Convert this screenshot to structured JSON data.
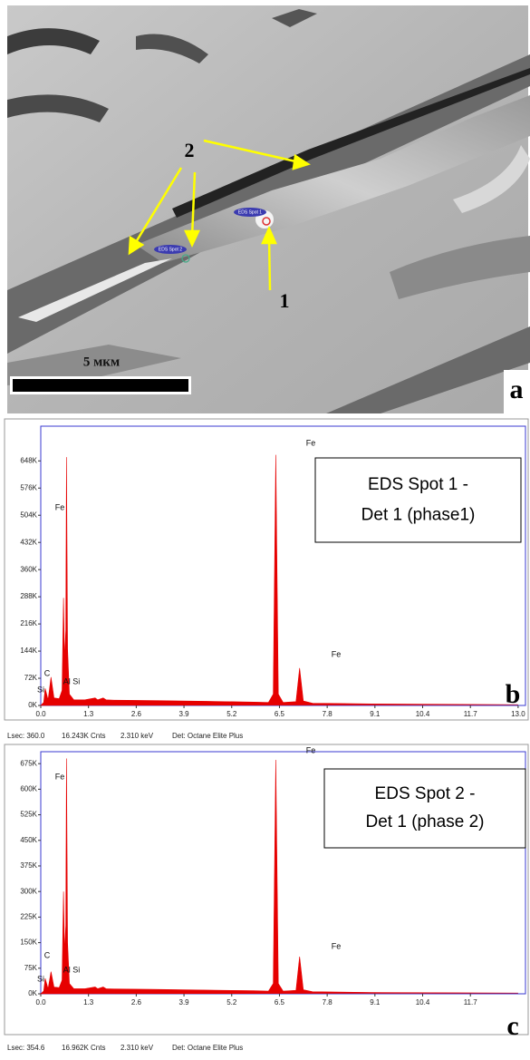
{
  "panel_a": {
    "arrow_label_2": "2",
    "arrow_label_1": "1",
    "spot_1": "EDS Spot 1",
    "spot_2": "EDS Spot 2",
    "scale_label": "5 мкм",
    "panel_letter": "a"
  },
  "chart_data": [
    {
      "type": "area",
      "color": "#e60000",
      "panel_letter": "b",
      "annotation": [
        "EDS Spot 1 -",
        "Det 1 (phase1)"
      ],
      "peak_labels": [
        "C",
        "Si",
        "Fe",
        "Al Si",
        "Fe",
        "Fe"
      ],
      "footer": [
        "Lsec: 360.0",
        "16.243K Cnts",
        "2.310 keV",
        "Det: Octane Elite Plus"
      ],
      "x": [
        0,
        0.08,
        0.12,
        0.2,
        0.28,
        0.36,
        0.5,
        0.58,
        0.62,
        0.65,
        0.68,
        0.7,
        0.73,
        0.78,
        0.9,
        1.2,
        1.48,
        1.55,
        1.7,
        1.78,
        2.0,
        3.0,
        4.5,
        5.8,
        6.2,
        6.33,
        6.4,
        6.47,
        6.6,
        6.95,
        7.05,
        7.15,
        7.4,
        9,
        13
      ],
      "values": [
        0,
        8000,
        45000,
        15000,
        75000,
        20000,
        18000,
        40000,
        285000,
        120000,
        200000,
        658000,
        150000,
        30000,
        15000,
        15000,
        20000,
        15000,
        20000,
        15000,
        14000,
        13000,
        11000,
        9000,
        8000,
        30000,
        664000,
        30000,
        8000,
        10000,
        99000,
        12000,
        6000,
        4000,
        2000
      ],
      "xlim": [
        0,
        13.2
      ],
      "xticks": [
        {
          "value": 0,
          "label": "0.0"
        },
        1.3,
        2.6,
        3.9,
        5.2,
        6.5,
        7.8,
        9.1,
        10.4,
        11.7,
        {
          "value": 13,
          "label": "13.0"
        }
      ],
      "ylim": [
        0,
        740000
      ],
      "yticks": [
        {
          "value": 0,
          "label": "0K"
        },
        {
          "value": 72000,
          "label": "72K"
        },
        {
          "value": 144000,
          "label": "144K"
        },
        {
          "value": 216000,
          "label": "216K"
        },
        {
          "value": 288000,
          "label": "288K"
        },
        {
          "value": 360000,
          "label": "360K"
        },
        {
          "value": 432000,
          "label": "432K"
        },
        {
          "value": 504000,
          "label": "504K"
        },
        {
          "value": 576000,
          "label": "576K"
        },
        {
          "value": 648000,
          "label": "648K"
        }
      ]
    },
    {
      "type": "area",
      "color": "#e60000",
      "panel_letter": "c",
      "annotation": [
        "EDS Spot 2 -",
        "Det 1 (phase 2)"
      ],
      "peak_labels": [
        "C",
        "Si",
        "Fe",
        "Al Si",
        "Fe",
        "Fe"
      ],
      "footer": [
        "Lsec: 354.6",
        "16.962K Cnts",
        "2.310 keV",
        "Det: Octane Elite Plus"
      ],
      "x": [
        0,
        0.08,
        0.12,
        0.2,
        0.28,
        0.36,
        0.5,
        0.58,
        0.62,
        0.65,
        0.68,
        0.7,
        0.73,
        0.78,
        0.9,
        1.2,
        1.48,
        1.55,
        1.7,
        1.78,
        2.0,
        3.0,
        4.5,
        5.8,
        6.2,
        6.33,
        6.4,
        6.47,
        6.6,
        6.95,
        7.05,
        7.15,
        7.4,
        9,
        13
      ],
      "values": [
        0,
        8000,
        45000,
        15000,
        65000,
        20000,
        18000,
        40000,
        300000,
        120000,
        200000,
        690000,
        150000,
        30000,
        15000,
        15000,
        20000,
        15000,
        20000,
        15000,
        14000,
        13000,
        11000,
        9000,
        8000,
        30000,
        686000,
        30000,
        8000,
        10000,
        109000,
        12000,
        6000,
        4000,
        2000
      ],
      "xlim": [
        0,
        13.2
      ],
      "xticks": [
        {
          "value": 0,
          "label": "0.0"
        },
        1.3,
        2.6,
        3.9,
        5.2,
        6.5,
        7.8,
        9.1,
        10.4,
        11.7
      ],
      "ylim": [
        0,
        710000
      ],
      "yticks": [
        {
          "value": 0,
          "label": "0K"
        },
        {
          "value": 75000,
          "label": "75K"
        },
        {
          "value": 150000,
          "label": "150K"
        },
        {
          "value": 225000,
          "label": "225K"
        },
        {
          "value": 300000,
          "label": "300K"
        },
        {
          "value": 375000,
          "label": "375K"
        },
        {
          "value": 450000,
          "label": "450K"
        },
        {
          "value": 525000,
          "label": "525K"
        },
        {
          "value": 600000,
          "label": "600K"
        },
        {
          "value": 675000,
          "label": "675K"
        }
      ]
    }
  ]
}
